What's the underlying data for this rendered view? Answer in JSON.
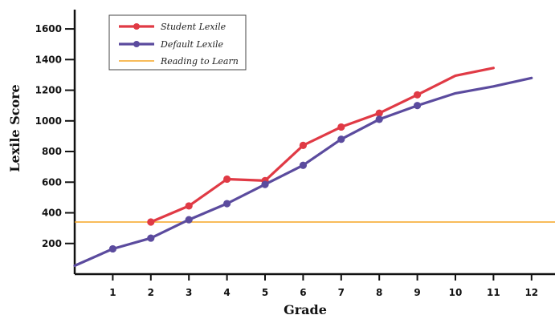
{
  "chart_data": {
    "type": "line",
    "xlabel": "Grade",
    "ylabel": "Lexile Score",
    "x_ticks": [
      "1",
      "2",
      "3",
      "4",
      "5",
      "6",
      "7",
      "8",
      "9",
      "10",
      "11",
      "12"
    ],
    "y_ticks": [
      "200",
      "400",
      "600",
      "800",
      "1000",
      "1200",
      "1400",
      "1600"
    ],
    "xlim": [
      0,
      12.5
    ],
    "ylim": [
      0,
      1720
    ],
    "grid": false,
    "legend_position": "top-left",
    "series": [
      {
        "name": "Student Lexile",
        "color": "#e03a45",
        "x": [
          2,
          3,
          4,
          5,
          6,
          7,
          8,
          9,
          10,
          11
        ],
        "y": [
          340,
          445,
          620,
          610,
          840,
          960,
          1050,
          1170,
          1295,
          1345
        ],
        "markers": [
          true,
          true,
          true,
          true,
          true,
          true,
          true,
          true,
          false,
          false
        ]
      },
      {
        "name": "Default Lexile",
        "color": "#5b4b9e",
        "x": [
          0,
          1,
          2,
          3,
          4,
          5,
          6,
          7,
          8,
          9,
          10,
          11,
          12
        ],
        "y": [
          55,
          165,
          235,
          355,
          460,
          585,
          710,
          880,
          1010,
          1100,
          1180,
          1225,
          1280
        ],
        "markers": [
          false,
          true,
          true,
          true,
          true,
          true,
          true,
          true,
          true,
          true,
          false,
          false,
          false
        ]
      }
    ],
    "reference_line": {
      "name": "Reading to Learn",
      "color": "#f5a623",
      "y": 340
    }
  }
}
